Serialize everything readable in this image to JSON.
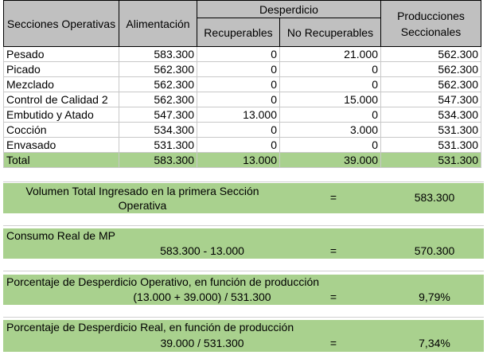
{
  "header": {
    "secciones": "Secciones Operativas",
    "alimentacion": "Alimentación",
    "desperdicio": "Desperdicio",
    "recuperables": "Recuperables",
    "no_recuperables": "No Recuperables",
    "producciones": "Producciones Seccionales"
  },
  "rows": [
    {
      "name": "Pesado",
      "alim": "583.300",
      "rec": "0",
      "norec": "21.000",
      "prod": "562.300"
    },
    {
      "name": "Picado",
      "alim": "562.300",
      "rec": "0",
      "norec": "0",
      "prod": "562.300"
    },
    {
      "name": "Mezclado",
      "alim": "562.300",
      "rec": "0",
      "norec": "0",
      "prod": "562.300"
    },
    {
      "name": "Control de Calidad 2",
      "alim": "562.300",
      "rec": "0",
      "norec": "15.000",
      "prod": "547.300"
    },
    {
      "name": "Embutido y Atado",
      "alim": "547.300",
      "rec": "13.000",
      "norec": "0",
      "prod": "534.300"
    },
    {
      "name": "Cocción",
      "alim": "534.300",
      "rec": "0",
      "norec": "3.000",
      "prod": "531.300"
    },
    {
      "name": "Envasado",
      "alim": "531.300",
      "rec": "0",
      "norec": "0",
      "prod": "531.300"
    }
  ],
  "total": {
    "name": "Total",
    "alim": "583.300",
    "rec": "13.000",
    "norec": "39.000",
    "prod": "531.300"
  },
  "summary": {
    "volumen": {
      "label": "Volumen Total Ingresado en la primera Sección Operativa",
      "eq": "=",
      "value": "583.300"
    },
    "consumo": {
      "label": "Consumo Real de MP",
      "formula": "583.300 - 13.000",
      "eq": "=",
      "value": "570.300"
    },
    "operativo": {
      "label": "Porcentaje de Desperdicio Operativo, en función de producción",
      "formula": "(13.000 + 39.000) / 531.300",
      "eq": "=",
      "value": "9,79%"
    },
    "real": {
      "label": "Porcentaje de Desperdicio Real, en función de producción",
      "formula": "39.000 / 531.300",
      "eq": "=",
      "value": "7,34%"
    }
  },
  "colors": {
    "header_bg": "#c0c0c0",
    "accent_green": "#a9d18e"
  }
}
